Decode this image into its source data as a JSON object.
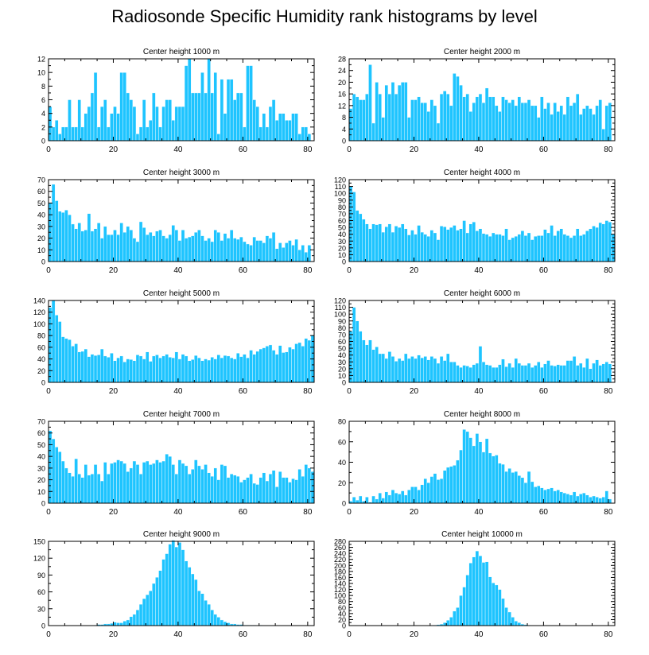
{
  "title": "Radiosonde Specific Humidity rank histograms by level",
  "colors": {
    "bar": "#1ec4ff",
    "bar_edge": "#ffffff",
    "axis": "#000000"
  },
  "chart_data": [
    {
      "type": "bar",
      "title": "Center height 1000 m",
      "xlim": [
        0,
        82
      ],
      "ylim": [
        0,
        12
      ],
      "xticks": [
        0,
        20,
        40,
        60,
        80
      ],
      "yticks": [
        0,
        2,
        4,
        6,
        8,
        10,
        12
      ],
      "values": [
        5,
        2,
        3,
        1,
        2,
        2,
        6,
        2,
        2,
        6,
        2,
        4,
        5,
        7,
        10,
        2,
        5,
        6,
        2,
        4,
        5,
        4,
        10,
        10,
        7,
        6,
        5,
        1,
        2,
        6,
        2,
        3,
        7,
        5,
        2,
        5,
        6,
        6,
        3,
        5,
        5,
        5,
        11,
        12,
        7,
        7,
        7,
        10,
        7,
        12,
        7,
        10,
        1,
        9,
        4,
        9,
        9,
        6,
        7,
        7,
        2,
        11,
        11,
        6,
        5,
        2,
        4,
        2,
        5,
        6,
        3,
        4,
        4,
        3,
        3,
        4,
        4,
        1,
        2,
        2,
        1
      ],
      "xlabel": "",
      "ylabel": ""
    },
    {
      "type": "bar",
      "title": "Center height 2000 m",
      "xlim": [
        0,
        82
      ],
      "ylim": [
        0,
        28
      ],
      "xticks": [
        0,
        20,
        40,
        60,
        80
      ],
      "yticks": [
        0,
        4,
        8,
        12,
        16,
        20,
        24,
        28
      ],
      "values": [
        11,
        16,
        15,
        14,
        14,
        16,
        26,
        6,
        20,
        16,
        8,
        19,
        16,
        20,
        16,
        19,
        20,
        20,
        8,
        14,
        14,
        15,
        13,
        13,
        10,
        14,
        12,
        6,
        16,
        17,
        16,
        12,
        23,
        22,
        19,
        15,
        16,
        10,
        13,
        15,
        16,
        13,
        18,
        15,
        15,
        12,
        10,
        15,
        14,
        13,
        14,
        12,
        15,
        13,
        13,
        14,
        12,
        12,
        8,
        15,
        11,
        13,
        9,
        13,
        10,
        12,
        9,
        15,
        12,
        13,
        16,
        9,
        11,
        12,
        11,
        9,
        12,
        14,
        4,
        12,
        13
      ],
      "xlabel": "",
      "ylabel": ""
    },
    {
      "type": "bar",
      "title": "Center height 3000 m",
      "xlim": [
        0,
        82
      ],
      "ylim": [
        0,
        70
      ],
      "xticks": [
        0,
        20,
        40,
        60,
        80
      ],
      "yticks": [
        0,
        10,
        20,
        30,
        40,
        50,
        60,
        70
      ],
      "values": [
        50,
        66,
        52,
        43,
        42,
        44,
        40,
        32,
        28,
        33,
        26,
        27,
        41,
        26,
        28,
        33,
        20,
        30,
        23,
        23,
        27,
        23,
        33,
        25,
        30,
        27,
        20,
        17,
        34,
        29,
        23,
        25,
        22,
        26,
        27,
        22,
        20,
        23,
        31,
        27,
        18,
        27,
        20,
        21,
        22,
        25,
        27,
        22,
        18,
        20,
        17,
        27,
        25,
        18,
        24,
        20,
        27,
        20,
        19,
        21,
        17,
        15,
        14,
        21,
        18,
        18,
        16,
        22,
        20,
        25,
        11,
        16,
        12,
        16,
        18,
        14,
        19,
        10,
        14,
        8,
        14
      ],
      "xlabel": "",
      "ylabel": ""
    },
    {
      "type": "bar",
      "title": "Center height 4000 m",
      "xlim": [
        0,
        82
      ],
      "ylim": [
        0,
        120
      ],
      "xticks": [
        0,
        20,
        40,
        60,
        80
      ],
      "yticks": [
        0,
        10,
        20,
        30,
        40,
        50,
        60,
        70,
        80,
        90,
        100,
        110,
        120
      ],
      "values": [
        110,
        102,
        75,
        70,
        62,
        55,
        48,
        55,
        54,
        55,
        43,
        51,
        55,
        43,
        52,
        50,
        55,
        48,
        39,
        46,
        40,
        53,
        43,
        40,
        37,
        46,
        42,
        32,
        52,
        51,
        47,
        50,
        53,
        46,
        48,
        60,
        42,
        55,
        58,
        45,
        48,
        41,
        40,
        37,
        42,
        40,
        40,
        38,
        48,
        32,
        35,
        37,
        40,
        45,
        38,
        42,
        32,
        37,
        38,
        38,
        47,
        42,
        53,
        38,
        45,
        48,
        40,
        38,
        35,
        38,
        48,
        38,
        40,
        45,
        48,
        52,
        50,
        57,
        55,
        60,
        58,
        40
      ],
      "xlabel": "",
      "ylabel": ""
    },
    {
      "type": "bar",
      "title": "Center height 5000 m",
      "xlim": [
        0,
        82
      ],
      "ylim": [
        0,
        140
      ],
      "xticks": [
        0,
        20,
        40,
        60,
        80
      ],
      "yticks": [
        0,
        20,
        40,
        60,
        80,
        100,
        120,
        140
      ],
      "values": [
        128,
        140,
        115,
        104,
        78,
        75,
        73,
        62,
        66,
        52,
        53,
        57,
        44,
        48,
        46,
        47,
        57,
        45,
        43,
        50,
        37,
        42,
        45,
        35,
        40,
        39,
        37,
        47,
        45,
        40,
        52,
        36,
        45,
        47,
        42,
        45,
        48,
        43,
        42,
        52,
        40,
        48,
        45,
        37,
        39,
        46,
        42,
        37,
        40,
        38,
        43,
        40,
        47,
        42,
        46,
        45,
        42,
        40,
        50,
        44,
        48,
        42,
        55,
        48,
        53,
        57,
        59,
        62,
        64,
        55,
        48,
        63,
        51,
        52,
        60,
        57,
        66,
        68,
        62,
        75,
        72,
        80
      ],
      "xlabel": "",
      "ylabel": ""
    },
    {
      "type": "bar",
      "title": "Center height 6000 m",
      "xlim": [
        0,
        82
      ],
      "ylim": [
        0,
        120
      ],
      "xticks": [
        0,
        20,
        40,
        60,
        80
      ],
      "yticks": [
        0,
        10,
        20,
        30,
        40,
        50,
        60,
        70,
        80,
        90,
        100,
        110,
        120
      ],
      "values": [
        75,
        110,
        90,
        75,
        62,
        55,
        62,
        48,
        52,
        42,
        42,
        35,
        45,
        38,
        31,
        35,
        32,
        42,
        35,
        38,
        35,
        40,
        36,
        38,
        33,
        38,
        35,
        28,
        38,
        32,
        42,
        30,
        30,
        25,
        22,
        25,
        24,
        22,
        26,
        28,
        53,
        30,
        26,
        25,
        22,
        22,
        26,
        34,
        23,
        28,
        22,
        35,
        28,
        25,
        25,
        28,
        22,
        25,
        30,
        22,
        27,
        32,
        25,
        24,
        26,
        25,
        25,
        32,
        32,
        38,
        25,
        28,
        22,
        35,
        20,
        28,
        33,
        25,
        27,
        30,
        27
      ],
      "xlabel": "",
      "ylabel": ""
    },
    {
      "type": "bar",
      "title": "Center height 7000 m",
      "xlim": [
        0,
        82
      ],
      "ylim": [
        0,
        70
      ],
      "xticks": [
        0,
        20,
        40,
        60,
        80
      ],
      "yticks": [
        0,
        10,
        20,
        30,
        40,
        50,
        60,
        70
      ],
      "values": [
        62,
        55,
        48,
        44,
        36,
        30,
        26,
        23,
        38,
        25,
        22,
        33,
        24,
        25,
        33,
        25,
        19,
        35,
        25,
        34,
        35,
        37,
        36,
        34,
        27,
        30,
        36,
        33,
        25,
        35,
        36,
        33,
        34,
        37,
        35,
        36,
        42,
        40,
        33,
        25,
        37,
        34,
        32,
        25,
        29,
        37,
        32,
        29,
        33,
        26,
        23,
        30,
        20,
        33,
        32,
        22,
        25,
        24,
        23,
        18,
        20,
        22,
        25,
        17,
        16,
        22,
        26,
        19,
        25,
        28,
        14,
        27,
        22,
        22,
        18,
        21,
        20,
        29,
        23,
        33,
        30,
        27
      ],
      "xlabel": "",
      "ylabel": ""
    },
    {
      "type": "bar",
      "title": "Center height 8000 m",
      "xlim": [
        0,
        82
      ],
      "ylim": [
        0,
        80
      ],
      "xticks": [
        0,
        20,
        40,
        60,
        80
      ],
      "yticks": [
        0,
        20,
        40,
        60,
        80
      ],
      "values": [
        2,
        6,
        3,
        7,
        2,
        6,
        1,
        7,
        4,
        10,
        5,
        11,
        8,
        13,
        10,
        9,
        12,
        8,
        13,
        16,
        16,
        13,
        18,
        24,
        20,
        26,
        29,
        23,
        24,
        32,
        35,
        36,
        37,
        42,
        52,
        72,
        70,
        64,
        56,
        68,
        60,
        50,
        63,
        49,
        46,
        47,
        39,
        38,
        31,
        34,
        30,
        31,
        27,
        25,
        20,
        31,
        21,
        16,
        17,
        15,
        13,
        14,
        15,
        12,
        13,
        11,
        10,
        9,
        8,
        11,
        7,
        9,
        10,
        8,
        6,
        7,
        6,
        5,
        6,
        12,
        4
      ],
      "xlabel": "",
      "ylabel": ""
    },
    {
      "type": "bar",
      "title": "Center height 9000 m",
      "xlim": [
        0,
        82
      ],
      "ylim": [
        0,
        150
      ],
      "xticks": [
        0,
        20,
        40,
        60,
        80
      ],
      "yticks": [
        0,
        30,
        60,
        90,
        120,
        150
      ],
      "values": [
        0,
        0,
        0,
        0,
        0,
        0,
        0,
        0,
        0,
        0,
        0,
        0,
        0,
        0,
        1,
        2,
        2,
        3,
        3,
        4,
        6,
        5,
        5,
        8,
        10,
        16,
        20,
        28,
        38,
        48,
        55,
        62,
        75,
        86,
        98,
        118,
        128,
        145,
        152,
        140,
        148,
        135,
        115,
        104,
        92,
        82,
        62,
        57,
        45,
        38,
        28,
        20,
        15,
        10,
        7,
        5,
        3,
        3,
        2,
        2,
        1,
        1,
        1,
        1,
        0,
        1,
        0,
        0,
        0,
        0,
        0,
        0,
        0,
        0,
        0,
        0,
        0,
        0,
        0,
        0,
        0
      ],
      "xlabel": "",
      "ylabel": ""
    },
    {
      "type": "bar",
      "title": "Center height 10000 m",
      "xlim": [
        0,
        82
      ],
      "ylim": [
        0,
        280
      ],
      "xticks": [
        0,
        20,
        40,
        60,
        80
      ],
      "yticks": [
        0,
        20,
        40,
        60,
        80,
        100,
        120,
        140,
        160,
        180,
        200,
        220,
        240,
        260,
        280
      ],
      "values": [
        0,
        0,
        0,
        0,
        0,
        0,
        0,
        0,
        0,
        0,
        0,
        0,
        0,
        0,
        0,
        0,
        0,
        0,
        0,
        0,
        0,
        0,
        0,
        0,
        0,
        1,
        2,
        3,
        5,
        10,
        18,
        28,
        48,
        60,
        100,
        128,
        168,
        208,
        228,
        248,
        232,
        210,
        212,
        162,
        142,
        135,
        120,
        90,
        60,
        45,
        28,
        15,
        10,
        5,
        3,
        2,
        1,
        1,
        0,
        0,
        0,
        0,
        0,
        0,
        0,
        0,
        0,
        0,
        0,
        0,
        0,
        0,
        0,
        0,
        0,
        0,
        0,
        0,
        0,
        0,
        0
      ],
      "xlabel": "",
      "ylabel": ""
    }
  ]
}
